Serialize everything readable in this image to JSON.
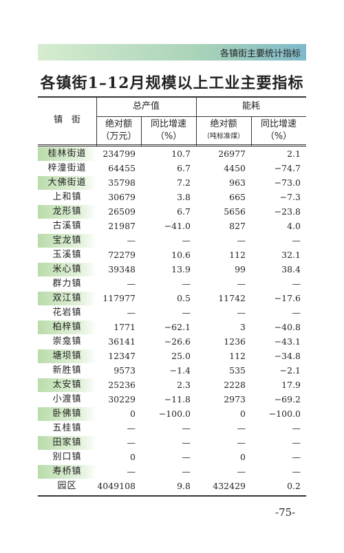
{
  "header": {
    "section": "各镇街主要统计指标"
  },
  "title": "各镇街1–12月规模以上工业主要指标",
  "table": {
    "corner": "镇　街",
    "groups": [
      "总产值",
      "能耗"
    ],
    "subheaders": [
      [
        "绝对额",
        "（万元）"
      ],
      [
        "同比增速",
        "（%）"
      ],
      [
        "绝对额",
        "（吨标准煤）"
      ],
      [
        "同比增速",
        "（%）"
      ]
    ],
    "rows": [
      [
        "桂林街道",
        "234799",
        "10.7",
        "26977",
        "2.1"
      ],
      [
        "梓潼街道",
        "64455",
        "6.7",
        "4450",
        "−74.7"
      ],
      [
        "大佛街道",
        "35798",
        "7.2",
        "963",
        "−73.0"
      ],
      [
        "上和镇",
        "30679",
        "3.8",
        "665",
        "−7.3"
      ],
      [
        "龙形镇",
        "26509",
        "6.7",
        "5656",
        "−23.8"
      ],
      [
        "古溪镇",
        "21987",
        "−41.0",
        "827",
        "4.0"
      ],
      [
        "宝龙镇",
        "—",
        "—",
        "—",
        "—"
      ],
      [
        "玉溪镇",
        "72279",
        "10.6",
        "112",
        "32.1"
      ],
      [
        "米心镇",
        "39348",
        "13.9",
        "99",
        "38.4"
      ],
      [
        "群力镇",
        "—",
        "—",
        "—",
        "—"
      ],
      [
        "双江镇",
        "117977",
        "0.5",
        "11742",
        "−17.6"
      ],
      [
        "花岩镇",
        "—",
        "—",
        "—",
        "—"
      ],
      [
        "柏梓镇",
        "1771",
        "−62.1",
        "3",
        "−40.8"
      ],
      [
        "崇龛镇",
        "36141",
        "−26.6",
        "1236",
        "−43.1"
      ],
      [
        "塘坝镇",
        "12347",
        "25.0",
        "112",
        "−34.8"
      ],
      [
        "新胜镇",
        "9573",
        "−1.4",
        "535",
        "−2.1"
      ],
      [
        "太安镇",
        "25236",
        "2.3",
        "2228",
        "17.9"
      ],
      [
        "小渡镇",
        "30229",
        "−11.8",
        "2973",
        "−69.2"
      ],
      [
        "卧佛镇",
        "0",
        "−100.0",
        "0",
        "−100.0"
      ],
      [
        "五桂镇",
        "—",
        "—",
        "—",
        "—"
      ],
      [
        "田家镇",
        "—",
        "—",
        "—",
        "—"
      ],
      [
        "别口镇",
        "0",
        "—",
        "0",
        "—"
      ],
      [
        "寿桥镇",
        "—",
        "—",
        "—",
        "—"
      ],
      [
        "园区",
        "4049108",
        "9.8",
        "432429",
        "0.2"
      ]
    ]
  },
  "page_number": "-75-"
}
